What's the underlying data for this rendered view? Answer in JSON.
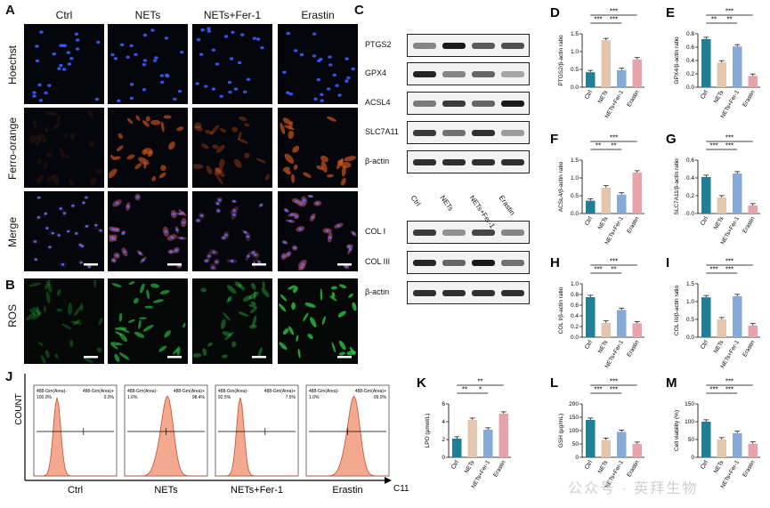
{
  "panel_letters": {
    "A": "A",
    "B": "B",
    "C": "C",
    "D": "D",
    "E": "E",
    "F": "F",
    "G": "G",
    "H": "H",
    "I": "I",
    "J": "J",
    "K": "K",
    "L": "L",
    "M": "M"
  },
  "conditions": [
    "Ctrl",
    "NETs",
    "NETs+Fer-1",
    "Erastin"
  ],
  "stain_rows": [
    "Hoechst",
    "Ferro-orange",
    "Merge",
    "ROS"
  ],
  "blot_labels_top": [
    "PTGS2",
    "GPX4",
    "ACSL4",
    "SLC7A11",
    "β-actin"
  ],
  "blot_labels_bottom": [
    "COL I",
    "COL III",
    "β-actin"
  ],
  "flow": {
    "y_label": "COUNT",
    "x_label": "C11",
    "gate_left": "488-Grn(Area)-",
    "gate_right": "488-Grn(Area)+",
    "samples": [
      {
        "name": "Ctrl",
        "left_pct": "100.0%",
        "right_pct": "0.0%"
      },
      {
        "name": "NETs",
        "left_pct": "1.6%",
        "right_pct": "98.4%"
      },
      {
        "name": "NETs+Fer-1",
        "left_pct": "92.5%",
        "right_pct": "7.5%"
      },
      {
        "name": "Erastin",
        "left_pct": "1.0%",
        "right_pct": "99.0%"
      }
    ]
  },
  "watermark": "公众号 · 英拜生物",
  "colors": {
    "ctrl": "#1e7f96",
    "nets": "#e3c6ad",
    "fer1": "#86a9d6",
    "erastin": "#e7a3ab"
  },
  "chart_data": [
    {
      "panel": "D",
      "type": "bar",
      "ylabel": "PTGS2/β-actin ratio",
      "categories": [
        "Ctrl",
        "NETs",
        "NETs+Fer-1",
        "Erastin"
      ],
      "values": [
        0.42,
        1.32,
        0.48,
        0.78
      ],
      "ylim": [
        0,
        1.5
      ],
      "ticks": [
        "0.0",
        "0.5",
        "1.0",
        "1.5"
      ],
      "sig": [
        {
          "a": 0,
          "b": 1,
          "label": "***"
        },
        {
          "a": 1,
          "b": 2,
          "label": "***"
        },
        {
          "a": 0,
          "b": 3,
          "label": "***"
        }
      ]
    },
    {
      "panel": "E",
      "type": "bar",
      "ylabel": "GPX4/β-actin ratio",
      "categories": [
        "Ctrl",
        "NETs",
        "NETs+Fer-1",
        "Erastin"
      ],
      "values": [
        0.72,
        0.37,
        0.61,
        0.17
      ],
      "ylim": [
        0,
        0.8
      ],
      "ticks": [
        "0.0",
        "0.2",
        "0.4",
        "0.6",
        "0.8"
      ],
      "sig": [
        {
          "a": 0,
          "b": 1,
          "label": "**"
        },
        {
          "a": 1,
          "b": 2,
          "label": "**"
        },
        {
          "a": 0,
          "b": 3,
          "label": "***"
        }
      ]
    },
    {
      "panel": "F",
      "type": "bar",
      "ylabel": "ACSL4/β-actin ratio",
      "categories": [
        "Ctrl",
        "NETs",
        "NETs+Fer-1",
        "Erastin"
      ],
      "values": [
        0.36,
        0.73,
        0.53,
        1.15
      ],
      "ylim": [
        0,
        1.5
      ],
      "ticks": [
        "0.0",
        "0.5",
        "1.0",
        "1.5"
      ],
      "sig": [
        {
          "a": 0,
          "b": 1,
          "label": "**"
        },
        {
          "a": 1,
          "b": 2,
          "label": "**"
        },
        {
          "a": 0,
          "b": 3,
          "label": "***"
        }
      ]
    },
    {
      "panel": "G",
      "type": "bar",
      "ylabel": "SLC7A11/β-actin ratio",
      "categories": [
        "Ctrl",
        "NETs",
        "NETs+Fer-1",
        "Erastin"
      ],
      "values": [
        0.41,
        0.18,
        0.45,
        0.09
      ],
      "ylim": [
        0,
        0.6
      ],
      "ticks": [
        "0.0",
        "0.2",
        "0.4",
        "0.6"
      ],
      "sig": [
        {
          "a": 0,
          "b": 1,
          "label": "***"
        },
        {
          "a": 1,
          "b": 2,
          "label": "***"
        },
        {
          "a": 0,
          "b": 3,
          "label": "***"
        }
      ]
    },
    {
      "panel": "H",
      "type": "bar",
      "ylabel": "COL I/β-actin ratio",
      "categories": [
        "Ctrl",
        "NETs",
        "NETs+Fer-1",
        "Erastin"
      ],
      "values": [
        0.75,
        0.27,
        0.51,
        0.26
      ],
      "ylim": [
        0,
        1.0
      ],
      "ticks": [
        "0.0",
        "0.2",
        "0.4",
        "0.6",
        "0.8",
        "1.0"
      ],
      "sig": [
        {
          "a": 0,
          "b": 1,
          "label": "***"
        },
        {
          "a": 1,
          "b": 2,
          "label": "**"
        },
        {
          "a": 0,
          "b": 3,
          "label": "***"
        }
      ]
    },
    {
      "panel": "I",
      "type": "bar",
      "ylabel": "COL III/β-actin ratio",
      "categories": [
        "Ctrl",
        "NETs",
        "NETs+Fer-1",
        "Erastin"
      ],
      "values": [
        1.12,
        0.5,
        1.15,
        0.33
      ],
      "ylim": [
        0,
        1.5
      ],
      "ticks": [
        "0.0",
        "0.5",
        "1.0",
        "1.5"
      ],
      "sig": [
        {
          "a": 0,
          "b": 1,
          "label": "***"
        },
        {
          "a": 1,
          "b": 2,
          "label": "***"
        },
        {
          "a": 0,
          "b": 3,
          "label": "***"
        }
      ]
    },
    {
      "panel": "K",
      "type": "bar",
      "ylabel": "LPO (μmol/L)",
      "categories": [
        "Ctrl",
        "NETs",
        "NETs+Fer-1",
        "Erastin"
      ],
      "values": [
        2.1,
        4.2,
        3.1,
        4.9
      ],
      "ylim": [
        0,
        6
      ],
      "ticks": [
        "0",
        "2",
        "4",
        "6"
      ],
      "sig": [
        {
          "a": 0,
          "b": 1,
          "label": "**"
        },
        {
          "a": 1,
          "b": 2,
          "label": "*"
        },
        {
          "a": 0,
          "b": 3,
          "label": "**"
        }
      ]
    },
    {
      "panel": "L",
      "type": "bar",
      "ylabel": "GSH (μg/mL)",
      "categories": [
        "Ctrl",
        "NETs",
        "NETs+Fer-1",
        "Erastin"
      ],
      "values": [
        140,
        65,
        95,
        50
      ],
      "ylim": [
        0,
        200
      ],
      "ticks": [
        "0",
        "50",
        "100",
        "150",
        "200"
      ],
      "sig": [
        {
          "a": 0,
          "b": 1,
          "label": "***"
        },
        {
          "a": 1,
          "b": 2,
          "label": "***"
        },
        {
          "a": 0,
          "b": 3,
          "label": "***"
        }
      ]
    },
    {
      "panel": "M",
      "type": "bar",
      "ylabel": "Cell viability (%)",
      "categories": [
        "Ctrl",
        "NETs",
        "NETs+Fer-1",
        "Erastin"
      ],
      "values": [
        100,
        50,
        68,
        38
      ],
      "ylim": [
        0,
        150
      ],
      "ticks": [
        "0",
        "50",
        "100",
        "150"
      ],
      "sig": [
        {
          "a": 0,
          "b": 1,
          "label": "***"
        },
        {
          "a": 1,
          "b": 2,
          "label": "***"
        },
        {
          "a": 0,
          "b": 3,
          "label": "***"
        }
      ]
    }
  ]
}
